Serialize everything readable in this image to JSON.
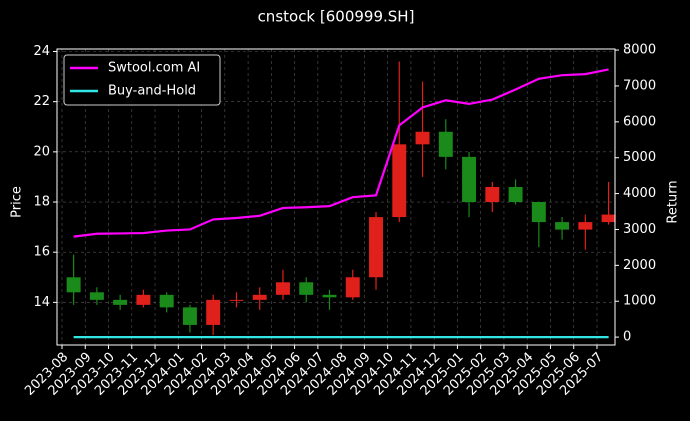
{
  "chart_data": {
    "type": "candlestick",
    "title": "cnstock [600999.SH]",
    "ylabel": "Price",
    "y2label": "Return",
    "categories": [
      "2023-08",
      "2023-09",
      "2023-10",
      "2023-11",
      "2023-12",
      "2024-01",
      "2024-02",
      "2024-03",
      "2024-04",
      "2024-05",
      "2024-06",
      "2024-07",
      "2024-08",
      "2024-09",
      "2024-10",
      "2024-11",
      "2024-12",
      "2025-01",
      "2025-02",
      "2025-03",
      "2025-04",
      "2025-05",
      "2025-06",
      "2025-07"
    ],
    "open": [
      15.0,
      14.4,
      14.1,
      13.9,
      14.3,
      13.8,
      13.1,
      14.1,
      14.1,
      14.3,
      14.8,
      14.3,
      14.2,
      15.0,
      17.4,
      20.3,
      20.8,
      19.8,
      18.0,
      18.6,
      18.0,
      17.2,
      16.9,
      17.2
    ],
    "high": [
      15.9,
      14.6,
      14.3,
      14.5,
      14.4,
      13.9,
      14.3,
      14.4,
      14.6,
      15.3,
      15.0,
      14.5,
      15.3,
      17.6,
      23.6,
      22.8,
      21.3,
      20.0,
      18.8,
      18.9,
      18.0,
      17.4,
      17.5,
      18.8
    ],
    "low": [
      13.9,
      13.9,
      13.7,
      13.8,
      13.6,
      12.8,
      12.7,
      13.8,
      13.7,
      14.1,
      14.0,
      13.7,
      14.1,
      14.5,
      17.2,
      19.0,
      19.3,
      17.4,
      17.6,
      17.9,
      16.2,
      16.5,
      16.1,
      17.1
    ],
    "close": [
      14.4,
      14.1,
      13.9,
      14.3,
      13.8,
      13.1,
      14.1,
      14.1,
      14.3,
      14.8,
      14.3,
      14.2,
      15.0,
      17.4,
      20.3,
      20.8,
      19.8,
      18.0,
      18.6,
      18.0,
      17.2,
      16.9,
      17.2,
      17.5
    ],
    "up_color": "#e0201a",
    "down_color": "#1a8a1a",
    "series": [
      {
        "name": "Swtool.com AI",
        "color": "#ff00ff",
        "axis": "y2",
        "values": [
          2800,
          2880,
          2890,
          2900,
          2970,
          3000,
          3280,
          3320,
          3380,
          3600,
          3620,
          3650,
          3900,
          3950,
          5900,
          6400,
          6600,
          6500,
          6620,
          6900,
          7200,
          7300,
          7330,
          7460
        ]
      },
      {
        "name": "Buy-and-Hold",
        "color": "#33e6e6",
        "axis": "y2",
        "values": [
          0,
          0,
          0,
          0,
          0,
          0,
          0,
          0,
          0,
          0,
          0,
          0,
          0,
          0,
          0,
          0,
          0,
          0,
          0,
          0,
          0,
          0,
          0,
          0
        ]
      }
    ],
    "ylim": [
      12.3,
      24.1
    ],
    "yticks": [
      14,
      16,
      18,
      20,
      22,
      24
    ],
    "y2lim": [
      -220,
      8030
    ],
    "y2ticks": [
      0,
      1000,
      2000,
      3000,
      4000,
      5000,
      6000,
      7000,
      8000
    ],
    "grid": true,
    "legend": "upper left"
  }
}
